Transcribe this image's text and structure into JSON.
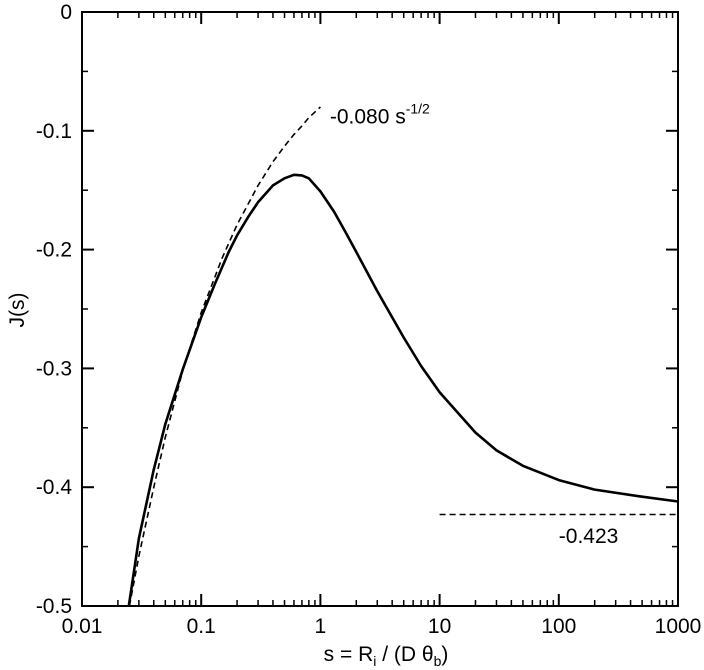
{
  "chart_data": {
    "type": "line",
    "title": "",
    "xlabel": {
      "main": "s = R",
      "sub1": "i",
      "mid": " / (D θ",
      "sub2": "b",
      "end": ")"
    },
    "ylabel": "J(s)",
    "xscale": "log",
    "xlim": [
      0.01,
      1000
    ],
    "ylim": [
      -0.5,
      0
    ],
    "xticks": [
      "0.01",
      "0.1",
      "1",
      "10",
      "100",
      "1000"
    ],
    "yticks": [
      "-0.5",
      "-0.4",
      "-0.3",
      "-0.2",
      "-0.1",
      "0"
    ],
    "grid": false,
    "legend": "none",
    "series": [
      {
        "style": "solid",
        "x": [
          0.0247,
          0.03,
          0.04,
          0.05,
          0.07,
          0.1,
          0.13,
          0.17,
          0.2,
          0.25,
          0.3,
          0.4,
          0.5,
          0.6,
          0.7,
          0.8,
          1.0,
          1.3,
          1.6,
          2,
          3,
          5,
          7,
          10,
          20,
          30,
          50,
          100,
          200,
          500,
          1000
        ],
        "y": [
          -0.5,
          -0.443,
          -0.385,
          -0.347,
          -0.301,
          -0.257,
          -0.229,
          -0.202,
          -0.188,
          -0.172,
          -0.16,
          -0.146,
          -0.14,
          -0.137,
          -0.1375,
          -0.14,
          -0.151,
          -0.168,
          -0.184,
          -0.202,
          -0.235,
          -0.274,
          -0.298,
          -0.32,
          -0.354,
          -0.369,
          -0.382,
          -0.394,
          -0.402,
          -0.408,
          -0.412
        ]
      },
      {
        "style": "dashed",
        "x": [
          0.025,
          0.03,
          0.04,
          0.05,
          0.07,
          0.1,
          0.15,
          0.2,
          0.3,
          0.4,
          0.5,
          0.6,
          0.7,
          0.8,
          1.0
        ],
        "y": [
          -0.5,
          -0.458,
          -0.4,
          -0.358,
          -0.302,
          -0.253,
          -0.207,
          -0.179,
          -0.146,
          -0.126,
          -0.113,
          -0.103,
          -0.096,
          -0.089,
          -0.08
        ]
      },
      {
        "style": "dashed",
        "x": [
          10,
          1000
        ],
        "y": [
          -0.423,
          -0.423
        ]
      }
    ],
    "annotations": [
      {
        "id": "asymptote-small",
        "main": "-0.080 s",
        "sup": "-1/2",
        "x": 1.2,
        "y": -0.088
      },
      {
        "id": "asymptote-large",
        "main": "-0.423",
        "x": 100,
        "y": -0.441
      }
    ]
  }
}
